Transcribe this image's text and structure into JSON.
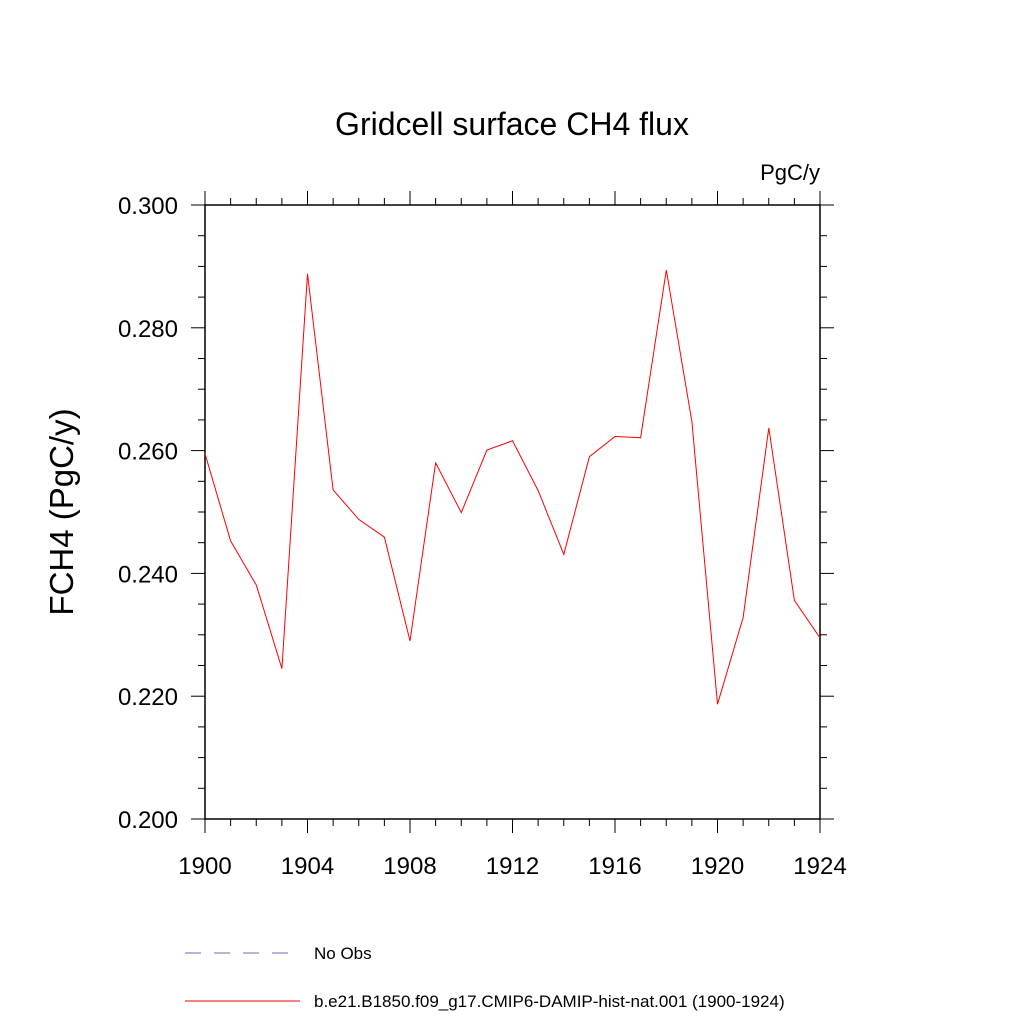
{
  "chart_data": {
    "type": "line",
    "title": "Gridcell surface CH4 flux",
    "units": "PgC/y",
    "ylabel": "FCH4  (PgC/y)",
    "xlabel": "",
    "xlim": [
      1900,
      1924
    ],
    "ylim": [
      0.2,
      0.3
    ],
    "xticks": [
      "1900",
      "1904",
      "1908",
      "1912",
      "1916",
      "1920",
      "1924"
    ],
    "yticks": [
      "0.200",
      "0.220",
      "0.240",
      "0.260",
      "0.280",
      "0.300"
    ],
    "grid": false,
    "x": [
      1900,
      1901,
      1902,
      1903,
      1904,
      1905,
      1906,
      1907,
      1908,
      1909,
      1910,
      1911,
      1912,
      1913,
      1914,
      1915,
      1916,
      1917,
      1918,
      1919,
      1920,
      1921,
      1922,
      1923,
      1924
    ],
    "series": [
      {
        "name": "b.e21.B1850.f09_g17.CMIP6-DAMIP-hist-nat.001 (1900-1924)",
        "color": "#ff0000",
        "values": [
          0.2595,
          0.2453,
          0.2381,
          0.2245,
          0.2888,
          0.2536,
          0.2488,
          0.2459,
          0.229,
          0.258,
          0.2499,
          0.2601,
          0.2616,
          0.2535,
          0.2431,
          0.259,
          0.2623,
          0.2621,
          0.2894,
          0.2647,
          0.2187,
          0.2328,
          0.2637,
          0.2356,
          0.2295
        ]
      }
    ],
    "legend": {
      "placement": "bottom",
      "entries": [
        {
          "label": "No Obs",
          "color": "#6b6bb5",
          "style": "dashed"
        },
        {
          "label": "b.e21.B1850.f09_g17.CMIP6-DAMIP-hist-nat.001 (1900-1924)",
          "color": "#ff0000",
          "style": "solid"
        }
      ]
    }
  }
}
